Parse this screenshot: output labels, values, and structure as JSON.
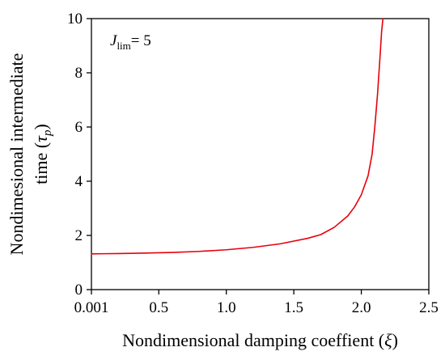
{
  "chart_data": {
    "type": "line",
    "title": "",
    "xlabel": "Nondimensional damping coeffient (ξ)",
    "ylabel_lines": [
      "Nondimesional intermediate",
      "time (τp)"
    ],
    "xlim": [
      0.001,
      2.5
    ],
    "ylim": [
      0,
      10
    ],
    "x_ticks": [
      {
        "value": 0.001,
        "label": "0.001"
      },
      {
        "value": 0.5,
        "label": "0.5"
      },
      {
        "value": 1.0,
        "label": "1.0"
      },
      {
        "value": 1.5,
        "label": "1.5"
      },
      {
        "value": 2.0,
        "label": "2.0"
      },
      {
        "value": 2.5,
        "label": "2.5"
      }
    ],
    "y_ticks": [
      {
        "value": 0,
        "label": "0"
      },
      {
        "value": 2,
        "label": "2"
      },
      {
        "value": 4,
        "label": "4"
      },
      {
        "value": 6,
        "label": "6"
      },
      {
        "value": 8,
        "label": "8"
      },
      {
        "value": 10,
        "label": "10"
      }
    ],
    "grid": false,
    "annotation": {
      "base": "J",
      "subscript": "lim",
      "text": "= 5"
    },
    "series": [
      {
        "color": "#e8000b",
        "x": [
          0.001,
          0.2,
          0.4,
          0.6,
          0.8,
          1.0,
          1.2,
          1.4,
          1.6,
          1.7,
          1.8,
          1.9,
          1.95,
          2.0,
          2.05,
          2.08,
          2.1,
          2.12,
          2.14,
          2.15,
          2.16
        ],
        "y": [
          1.32,
          1.33,
          1.35,
          1.37,
          1.41,
          1.47,
          1.56,
          1.69,
          1.89,
          2.03,
          2.3,
          2.72,
          3.05,
          3.5,
          4.2,
          5.0,
          6.0,
          7.2,
          8.7,
          9.5,
          10.0
        ]
      }
    ]
  }
}
